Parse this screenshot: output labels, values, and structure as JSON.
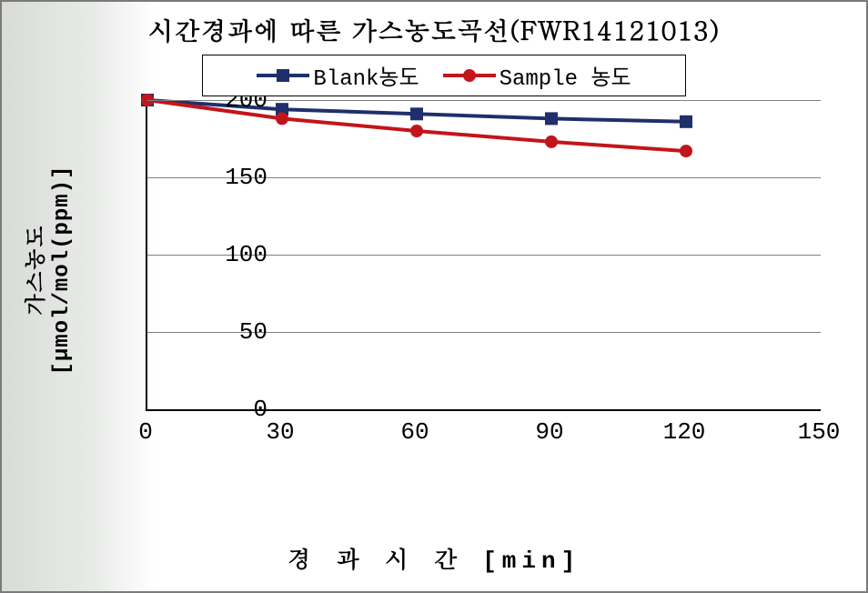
{
  "chart": {
    "type": "line",
    "title": "시간경과에 따른 가스농도곡선(FWR14121013)",
    "title_fontsize": 28,
    "x_label": "경 과 시 간 [min]",
    "y_label": "가스농도 [μmol/mol(ppm)]",
    "label_fontsize": 24,
    "background_color": "#ffffff",
    "grid_color": "#7f7f7f",
    "axis_color": "#000000",
    "x_values": [
      0,
      30,
      60,
      90,
      120
    ],
    "xlim": [
      0,
      150
    ],
    "xtick_step": 30,
    "x_ticks": [
      0,
      30,
      60,
      90,
      120,
      150
    ],
    "ylim": [
      0,
      200
    ],
    "ytick_step": 50,
    "y_ticks": [
      0,
      50,
      100,
      150,
      200
    ],
    "line_width": 4,
    "marker_size": 14,
    "series": [
      {
        "name": "Blank농도",
        "color": "#1f2f6b",
        "marker": "square",
        "values": [
          200,
          194,
          191,
          188,
          186
        ]
      },
      {
        "name": "Sample 농도",
        "color": "#c2151b",
        "marker": "circle",
        "values": [
          200,
          188,
          180,
          173,
          167
        ]
      }
    ],
    "legend": {
      "position": "top-center",
      "border_color": "#000000",
      "background": "#ffffff",
      "fontsize": 24
    },
    "tick_fontsize": 26
  }
}
